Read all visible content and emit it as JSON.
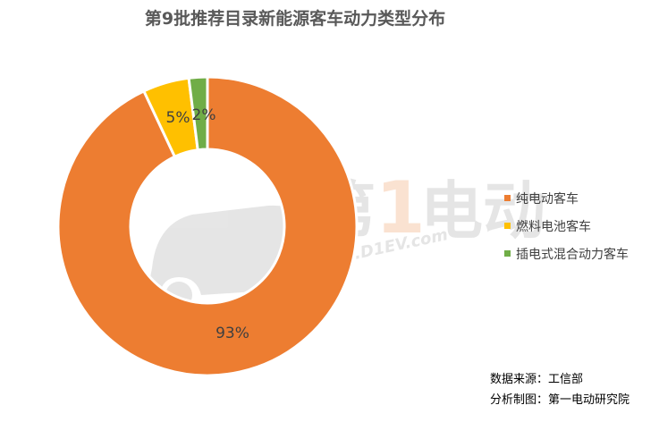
{
  "chart_data": {
    "type": "pie",
    "title": "第9批推荐目录新能源客车动力类型分布",
    "categories": [
      "纯电动客车",
      "燃料电池客车",
      "插电式混合动力客车"
    ],
    "values": [
      93,
      5,
      2
    ],
    "data_labels": [
      "93%",
      "5%",
      "2%"
    ],
    "colors": [
      "#ED7D31",
      "#FFC000",
      "#70AD47"
    ],
    "donut": true,
    "start": "top, clockwise",
    "legend_position": "right"
  },
  "watermark": {
    "brand_text": "第1电动",
    "site": "www.D1EV.com"
  },
  "footer": {
    "source": "数据来源：工信部",
    "made_by": "分析制图：第一电动研究院"
  }
}
